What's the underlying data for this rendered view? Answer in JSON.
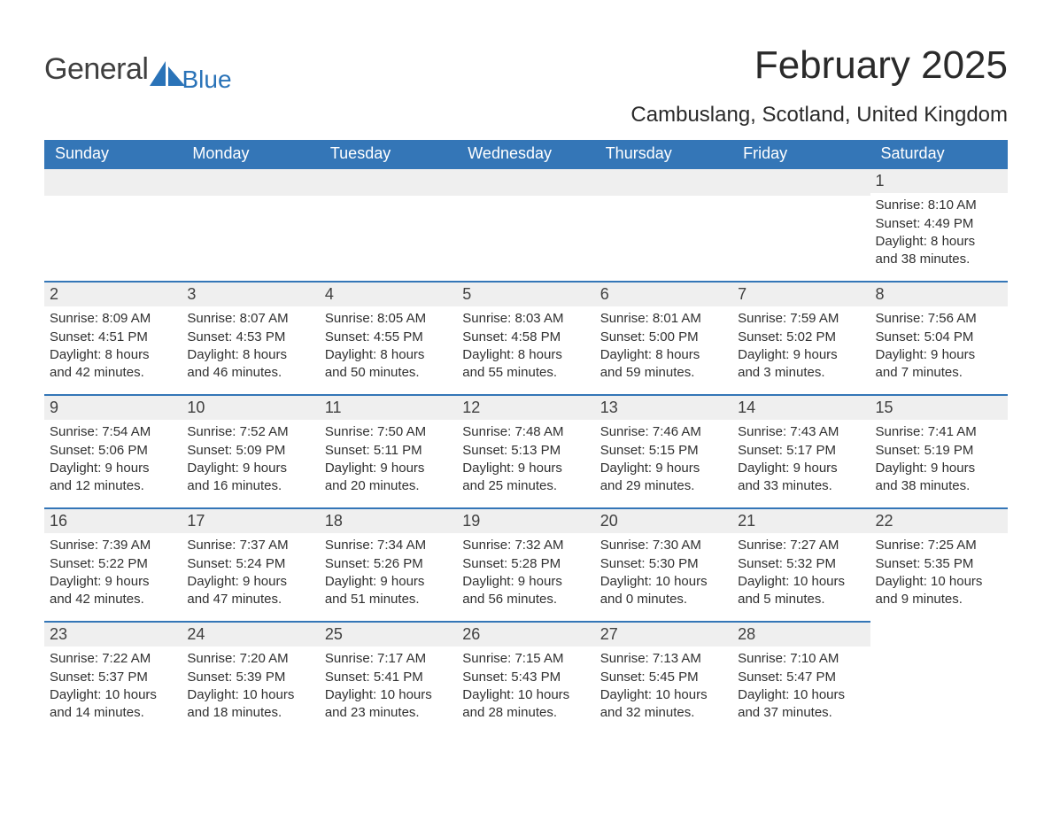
{
  "brand": {
    "general": "General",
    "blue": "Blue",
    "logo_color": "#2a73b8",
    "general_color": "#3f3f3f"
  },
  "header": {
    "month_title": "February 2025",
    "location": "Cambuslang, Scotland, United Kingdom"
  },
  "colors": {
    "header_row_bg": "#3476b7",
    "header_row_text": "#ffffff",
    "day_bar_bg": "#efefef",
    "day_bar_border": "#3476b7",
    "body_text": "#303030",
    "page_bg": "#ffffff"
  },
  "weekday_labels": [
    "Sunday",
    "Monday",
    "Tuesday",
    "Wednesday",
    "Thursday",
    "Friday",
    "Saturday"
  ],
  "weeks": [
    [
      {
        "empty": true
      },
      {
        "empty": true
      },
      {
        "empty": true
      },
      {
        "empty": true
      },
      {
        "empty": true
      },
      {
        "empty": true
      },
      {
        "day": "1",
        "sunrise": "Sunrise: 8:10 AM",
        "sunset": "Sunset: 4:49 PM",
        "daylight1": "Daylight: 8 hours",
        "daylight2": "and 38 minutes."
      }
    ],
    [
      {
        "day": "2",
        "sunrise": "Sunrise: 8:09 AM",
        "sunset": "Sunset: 4:51 PM",
        "daylight1": "Daylight: 8 hours",
        "daylight2": "and 42 minutes."
      },
      {
        "day": "3",
        "sunrise": "Sunrise: 8:07 AM",
        "sunset": "Sunset: 4:53 PM",
        "daylight1": "Daylight: 8 hours",
        "daylight2": "and 46 minutes."
      },
      {
        "day": "4",
        "sunrise": "Sunrise: 8:05 AM",
        "sunset": "Sunset: 4:55 PM",
        "daylight1": "Daylight: 8 hours",
        "daylight2": "and 50 minutes."
      },
      {
        "day": "5",
        "sunrise": "Sunrise: 8:03 AM",
        "sunset": "Sunset: 4:58 PM",
        "daylight1": "Daylight: 8 hours",
        "daylight2": "and 55 minutes."
      },
      {
        "day": "6",
        "sunrise": "Sunrise: 8:01 AM",
        "sunset": "Sunset: 5:00 PM",
        "daylight1": "Daylight: 8 hours",
        "daylight2": "and 59 minutes."
      },
      {
        "day": "7",
        "sunrise": "Sunrise: 7:59 AM",
        "sunset": "Sunset: 5:02 PM",
        "daylight1": "Daylight: 9 hours",
        "daylight2": "and 3 minutes."
      },
      {
        "day": "8",
        "sunrise": "Sunrise: 7:56 AM",
        "sunset": "Sunset: 5:04 PM",
        "daylight1": "Daylight: 9 hours",
        "daylight2": "and 7 minutes."
      }
    ],
    [
      {
        "day": "9",
        "sunrise": "Sunrise: 7:54 AM",
        "sunset": "Sunset: 5:06 PM",
        "daylight1": "Daylight: 9 hours",
        "daylight2": "and 12 minutes."
      },
      {
        "day": "10",
        "sunrise": "Sunrise: 7:52 AM",
        "sunset": "Sunset: 5:09 PM",
        "daylight1": "Daylight: 9 hours",
        "daylight2": "and 16 minutes."
      },
      {
        "day": "11",
        "sunrise": "Sunrise: 7:50 AM",
        "sunset": "Sunset: 5:11 PM",
        "daylight1": "Daylight: 9 hours",
        "daylight2": "and 20 minutes."
      },
      {
        "day": "12",
        "sunrise": "Sunrise: 7:48 AM",
        "sunset": "Sunset: 5:13 PM",
        "daylight1": "Daylight: 9 hours",
        "daylight2": "and 25 minutes."
      },
      {
        "day": "13",
        "sunrise": "Sunrise: 7:46 AM",
        "sunset": "Sunset: 5:15 PM",
        "daylight1": "Daylight: 9 hours",
        "daylight2": "and 29 minutes."
      },
      {
        "day": "14",
        "sunrise": "Sunrise: 7:43 AM",
        "sunset": "Sunset: 5:17 PM",
        "daylight1": "Daylight: 9 hours",
        "daylight2": "and 33 minutes."
      },
      {
        "day": "15",
        "sunrise": "Sunrise: 7:41 AM",
        "sunset": "Sunset: 5:19 PM",
        "daylight1": "Daylight: 9 hours",
        "daylight2": "and 38 minutes."
      }
    ],
    [
      {
        "day": "16",
        "sunrise": "Sunrise: 7:39 AM",
        "sunset": "Sunset: 5:22 PM",
        "daylight1": "Daylight: 9 hours",
        "daylight2": "and 42 minutes."
      },
      {
        "day": "17",
        "sunrise": "Sunrise: 7:37 AM",
        "sunset": "Sunset: 5:24 PM",
        "daylight1": "Daylight: 9 hours",
        "daylight2": "and 47 minutes."
      },
      {
        "day": "18",
        "sunrise": "Sunrise: 7:34 AM",
        "sunset": "Sunset: 5:26 PM",
        "daylight1": "Daylight: 9 hours",
        "daylight2": "and 51 minutes."
      },
      {
        "day": "19",
        "sunrise": "Sunrise: 7:32 AM",
        "sunset": "Sunset: 5:28 PM",
        "daylight1": "Daylight: 9 hours",
        "daylight2": "and 56 minutes."
      },
      {
        "day": "20",
        "sunrise": "Sunrise: 7:30 AM",
        "sunset": "Sunset: 5:30 PM",
        "daylight1": "Daylight: 10 hours",
        "daylight2": "and 0 minutes."
      },
      {
        "day": "21",
        "sunrise": "Sunrise: 7:27 AM",
        "sunset": "Sunset: 5:32 PM",
        "daylight1": "Daylight: 10 hours",
        "daylight2": "and 5 minutes."
      },
      {
        "day": "22",
        "sunrise": "Sunrise: 7:25 AM",
        "sunset": "Sunset: 5:35 PM",
        "daylight1": "Daylight: 10 hours",
        "daylight2": "and 9 minutes."
      }
    ],
    [
      {
        "day": "23",
        "sunrise": "Sunrise: 7:22 AM",
        "sunset": "Sunset: 5:37 PM",
        "daylight1": "Daylight: 10 hours",
        "daylight2": "and 14 minutes."
      },
      {
        "day": "24",
        "sunrise": "Sunrise: 7:20 AM",
        "sunset": "Sunset: 5:39 PM",
        "daylight1": "Daylight: 10 hours",
        "daylight2": "and 18 minutes."
      },
      {
        "day": "25",
        "sunrise": "Sunrise: 7:17 AM",
        "sunset": "Sunset: 5:41 PM",
        "daylight1": "Daylight: 10 hours",
        "daylight2": "and 23 minutes."
      },
      {
        "day": "26",
        "sunrise": "Sunrise: 7:15 AM",
        "sunset": "Sunset: 5:43 PM",
        "daylight1": "Daylight: 10 hours",
        "daylight2": "and 28 minutes."
      },
      {
        "day": "27",
        "sunrise": "Sunrise: 7:13 AM",
        "sunset": "Sunset: 5:45 PM",
        "daylight1": "Daylight: 10 hours",
        "daylight2": "and 32 minutes."
      },
      {
        "day": "28",
        "sunrise": "Sunrise: 7:10 AM",
        "sunset": "Sunset: 5:47 PM",
        "daylight1": "Daylight: 10 hours",
        "daylight2": "and 37 minutes."
      },
      {
        "empty": true,
        "no_bar": true
      }
    ]
  ]
}
